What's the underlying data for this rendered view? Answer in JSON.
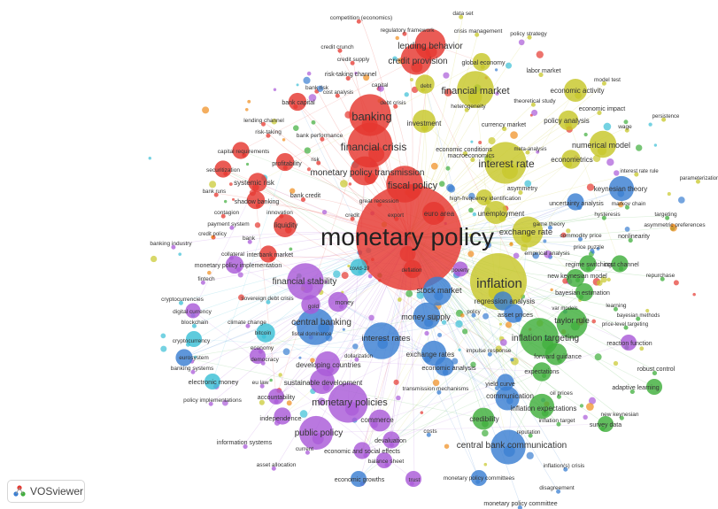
{
  "app": {
    "logo_text": "VOSviewer"
  },
  "colors": {
    "red": "#e5372f",
    "yellow": "#c7c72a",
    "green": "#3fae3c",
    "blue": "#3a7fd2",
    "purple": "#a95ad8",
    "cyan": "#3bbfd6",
    "orange": "#f08c1b",
    "edge": "#d6d6d6"
  },
  "chart_data": {
    "type": "network",
    "clusters": [
      "red",
      "yellow",
      "green",
      "blue",
      "purple",
      "cyan",
      "orange"
    ],
    "nodes": [
      {
        "label": "monetary policy",
        "cluster": "red",
        "weight": 1.0
      },
      {
        "label": "inflation",
        "cluster": "yellow",
        "weight": 0.5
      },
      {
        "label": "financial crisis",
        "cluster": "red",
        "weight": 0.38
      },
      {
        "label": "banking",
        "cluster": "red",
        "weight": 0.35
      },
      {
        "label": "interest rate",
        "cluster": "yellow",
        "weight": 0.35
      },
      {
        "label": "monetary policies",
        "cluster": "purple",
        "weight": 0.33
      },
      {
        "label": "financial stability",
        "cluster": "purple",
        "weight": 0.3
      },
      {
        "label": "central banking",
        "cluster": "blue",
        "weight": 0.3
      },
      {
        "label": "interest rates",
        "cluster": "blue",
        "weight": 0.3
      },
      {
        "label": "inflation targeting",
        "cluster": "green",
        "weight": 0.32
      },
      {
        "label": "financial market",
        "cluster": "yellow",
        "weight": 0.3
      },
      {
        "label": "fiscal policy",
        "cluster": "red",
        "weight": 0.3
      },
      {
        "label": "public policy",
        "cluster": "purple",
        "weight": 0.27
      },
      {
        "label": "central bank communication",
        "cluster": "blue",
        "weight": 0.28
      },
      {
        "label": "lending behavior",
        "cluster": "red",
        "weight": 0.24
      },
      {
        "label": "credit provision",
        "cluster": "red",
        "weight": 0.24
      },
      {
        "label": "exchange rate",
        "cluster": "yellow",
        "weight": 0.24
      },
      {
        "label": "taylor rule",
        "cluster": "green",
        "weight": 0.24
      },
      {
        "label": "monetary policy transmission",
        "cluster": "red",
        "weight": 0.22
      },
      {
        "label": "stock market",
        "cluster": "blue",
        "weight": 0.22
      },
      {
        "label": "money supply",
        "cluster": "blue",
        "weight": 0.2
      },
      {
        "label": "numerical model",
        "cluster": "yellow",
        "weight": 0.2
      },
      {
        "label": "keynesian theory",
        "cluster": "blue",
        "weight": 0.18
      },
      {
        "label": "inflation expectations",
        "cluster": "green",
        "weight": 0.18
      },
      {
        "label": "communication",
        "cluster": "blue",
        "weight": 0.17
      },
      {
        "label": "exchange rates",
        "cluster": "blue",
        "weight": 0.18
      },
      {
        "label": "developing countries",
        "cluster": "purple",
        "weight": 0.18
      },
      {
        "label": "sustainable development",
        "cluster": "purple",
        "weight": 0.18
      },
      {
        "label": "economic activity",
        "cluster": "yellow",
        "weight": 0.16
      },
      {
        "label": "investment",
        "cluster": "yellow",
        "weight": 0.16
      },
      {
        "label": "liquidity",
        "cluster": "red",
        "weight": 0.16
      },
      {
        "label": "euro area",
        "cluster": "red",
        "weight": 0.16
      },
      {
        "label": "unemployment",
        "cluster": "yellow",
        "weight": 0.16
      },
      {
        "label": "credibility",
        "cluster": "green",
        "weight": 0.15
      },
      {
        "label": "forward guidance",
        "cluster": "green",
        "weight": 0.15
      },
      {
        "label": "commerce",
        "cluster": "purple",
        "weight": 0.15
      },
      {
        "label": "policy analysis",
        "cluster": "yellow",
        "weight": 0.13
      },
      {
        "label": "money",
        "cluster": "purple",
        "weight": 0.13
      },
      {
        "label": "gold",
        "cluster": "purple",
        "weight": 0.12
      },
      {
        "label": "bitcoin",
        "cluster": "cyan",
        "weight": 0.12
      },
      {
        "label": "expectations",
        "cluster": "green",
        "weight": 0.12
      },
      {
        "label": "debt",
        "cluster": "yellow",
        "weight": 0.12
      },
      {
        "label": "econometrics",
        "cluster": "yellow",
        "weight": 0.12
      },
      {
        "label": "regression analysis",
        "cluster": "blue",
        "weight": 0.12
      },
      {
        "label": "asset prices",
        "cluster": "blue",
        "weight": 0.12
      },
      {
        "label": "economic analysis",
        "cluster": "blue",
        "weight": 0.12
      },
      {
        "label": "systemic risk",
        "cluster": "red",
        "weight": 0.12
      },
      {
        "label": "shadow banking",
        "cluster": "red",
        "weight": 0.11
      },
      {
        "label": "profitability",
        "cluster": "red",
        "weight": 0.11
      },
      {
        "label": "bank capital",
        "cluster": "red",
        "weight": 0.11
      },
      {
        "label": "capital requirements",
        "cluster": "red",
        "weight": 0.1
      },
      {
        "label": "securitization",
        "cluster": "red",
        "weight": 0.1
      },
      {
        "label": "global economy",
        "cluster": "yellow",
        "weight": 0.11
      },
      {
        "label": "bayesian estimation",
        "cluster": "green",
        "weight": 0.11
      },
      {
        "label": "new keynesian model",
        "cluster": "green",
        "weight": 0.11
      },
      {
        "label": "cost channel",
        "cluster": "green",
        "weight": 0.1
      },
      {
        "label": "regime switching",
        "cluster": "green",
        "weight": 0.1
      },
      {
        "label": "uncertainty analysis",
        "cluster": "blue",
        "weight": 0.1
      },
      {
        "label": "high-frequency identification",
        "cluster": "yellow",
        "weight": 0.09
      },
      {
        "label": "monetary policy implementation",
        "cluster": "purple",
        "weight": 0.11
      },
      {
        "label": "interbank market",
        "cluster": "red",
        "weight": 0.1
      },
      {
        "label": "covid-19",
        "cluster": "cyan",
        "weight": 0.1
      },
      {
        "label": "deflation",
        "cluster": "red",
        "weight": 0.11
      },
      {
        "label": "poverty",
        "cluster": "purple",
        "weight": 0.08
      },
      {
        "label": "transmission mechanisms",
        "cluster": "blue",
        "weight": 0.1
      },
      {
        "label": "yield curve",
        "cluster": "blue",
        "weight": 0.1
      },
      {
        "label": "economy",
        "cluster": "purple",
        "weight": 0.09
      },
      {
        "label": "democracy",
        "cluster": "purple",
        "weight": 0.09
      },
      {
        "label": "accountability",
        "cluster": "purple",
        "weight": 0.1
      },
      {
        "label": "independence",
        "cluster": "purple",
        "weight": 0.1
      },
      {
        "label": "devaluation",
        "cluster": "purple",
        "weight": 0.1
      },
      {
        "label": "economic and social effects",
        "cluster": "purple",
        "weight": 0.09
      },
      {
        "label": "balance sheet",
        "cluster": "blue",
        "weight": 0.09
      },
      {
        "label": "monetary policy committees",
        "cluster": "blue",
        "weight": 0.09
      },
      {
        "label": "economic growths",
        "cluster": "purple",
        "weight": 0.09
      },
      {
        "label": "trust",
        "cluster": "purple",
        "weight": 0.08
      },
      {
        "label": "digital currency",
        "cluster": "cyan",
        "weight": 0.09
      },
      {
        "label": "cryptocurrency",
        "cluster": "cyan",
        "weight": 0.09
      },
      {
        "label": "electronic money",
        "cluster": "purple",
        "weight": 0.09
      },
      {
        "label": "reaction function",
        "cluster": "green",
        "weight": 0.09
      },
      {
        "label": "adaptive learning",
        "cluster": "green",
        "weight": 0.09
      },
      {
        "label": "survey data",
        "cluster": "green",
        "weight": 0.08
      }
    ],
    "labels": [
      "competition (economics)",
      "data set",
      "regulatory framework",
      "crisis management",
      "policy strategy",
      "credit crunch",
      "lending behavior",
      "credit supply",
      "credit provision",
      "global economy",
      "labor market",
      "risk-taking channel",
      "model test",
      "bank risk",
      "capital",
      "debt",
      "economic activity",
      "cost analysis",
      "financial market",
      "bank capital",
      "debt crisis",
      "heterogeneity",
      "theoretical study",
      "economic impact",
      "persistence",
      "lending channel",
      "banking",
      "investment",
      "currency market",
      "policy analysis",
      "wage",
      "risk-taking",
      "bank performance",
      "economic conditions",
      "meta-analysis",
      "numerical model",
      "macroeconomics",
      "financial crisis",
      "capital requirements",
      "risk",
      "profitability",
      "interest rate",
      "econometrics",
      "interest rate rule",
      "parameterization",
      "securitization",
      "monetary policy transmission",
      "systemic risk",
      "fiscal policy",
      "asymmetry",
      "keynesian theory",
      "bank runs",
      "bank credit",
      "high-frequency identification",
      "shadow banking",
      "great recession",
      "uncertainty analysis",
      "markov chain",
      "contagion",
      "innovation",
      "credit",
      "export",
      "euro area",
      "unemployment",
      "hysteresis",
      "targeting",
      "payment system",
      "liquidity",
      "game theory",
      "exchange rate",
      "asymmetric preferences",
      "credit policy",
      "monetary policy",
      "commodity price",
      "nonlinearity",
      "banking industry",
      "bank",
      "price puzzle",
      "collateral",
      "interbank market",
      "empirical analysis",
      "monetary policy implementation",
      "covid-19",
      "deflation",
      "poverty",
      "regime switching",
      "cost channel",
      "fintech",
      "new keynesian model",
      "repurchase",
      "financial stability",
      "inflation",
      "cryptocurrencies",
      "sovereign debt crisis",
      "stock market",
      "bayesian estimation",
      "gold",
      "money",
      "regression analysis",
      "learning",
      "digital currency",
      "policy",
      "var models",
      "blockchain",
      "climate change",
      "money supply",
      "asset prices",
      "bayesian methods",
      "central banking",
      "taylor rule",
      "bitcoin",
      "fiscal dominance",
      "price-level targeting",
      "cryptocurrency",
      "economy",
      "interest rates",
      "inflation targeting",
      "reaction function",
      "dollarization",
      "impulse response",
      "eurosystem",
      "democracy",
      "exchange rates",
      "forward guidance",
      "robust control",
      "banking systems",
      "developing countries",
      "economic analysis",
      "expectations",
      "electronic money",
      "eu law",
      "sustainable development",
      "yield curve",
      "oil prices",
      "adaptive learning",
      "transmission mechanisms",
      "communication",
      "policy implementations",
      "accountability",
      "monetary policies",
      "inflation expectations",
      "new keynesian",
      "independence",
      "commerce",
      "credibility",
      "inflation target",
      "survey data",
      "costs",
      "public policy",
      "reputation",
      "devaluation",
      "information systems",
      "central bank communication",
      "current",
      "economic and social effects",
      "balance sheet",
      "inflation(s) crisis",
      "asset allocation",
      "economic growths",
      "trust",
      "monetary policy committees",
      "disagreement",
      "monetary policy committee"
    ]
  }
}
